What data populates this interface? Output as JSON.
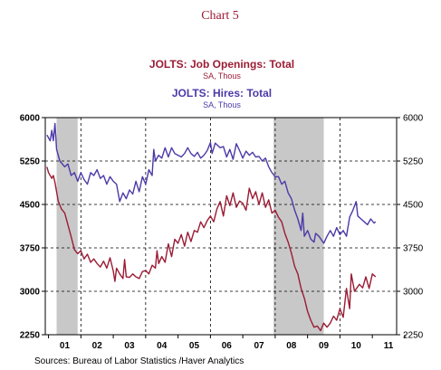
{
  "colors": {
    "openings": "#9b1c34",
    "hires": "#4b3aa8",
    "recession": "#c8c8c8",
    "grid": "#000000"
  },
  "chart_data": {
    "type": "line",
    "title": "Chart 5",
    "xlabel": "",
    "ylabel": "",
    "x_unit": "year",
    "xlim": [
      2000.9,
      2011.75
    ],
    "ylim": [
      2250,
      6000
    ],
    "y_ticks": [
      2250,
      3000,
      3750,
      4500,
      5250,
      6000
    ],
    "y_tick_labels": [
      "2250",
      "3000",
      "3750",
      "4500",
      "5250",
      "6000"
    ],
    "x_tick_labels": [
      {
        "year": 2001,
        "label": "01"
      },
      {
        "year": 2002,
        "label": "02"
      },
      {
        "year": 2003,
        "label": "03"
      },
      {
        "year": 2004,
        "label": "04"
      },
      {
        "year": 2005,
        "label": "05"
      },
      {
        "year": 2006,
        "label": "06"
      },
      {
        "year": 2007,
        "label": "07"
      },
      {
        "year": 2008,
        "label": "08"
      },
      {
        "year": 2009,
        "label": "09"
      },
      {
        "year": 2010,
        "label": "10"
      },
      {
        "year": 2011,
        "label": "11"
      }
    ],
    "grid": "dashed vertical at year starts, dashed horizontal at each y tick",
    "legend_placement": "top-center",
    "recessions": [
      {
        "start": 2001.25,
        "end": 2001.9
      },
      {
        "start": 2007.95,
        "end": 2009.5
      }
    ],
    "series": [
      {
        "name": "JOLTS: Job Openings: Total",
        "units": "SA, Thous",
        "color_key": "openings",
        "points": [
          [
            2000.95,
            5150
          ],
          [
            2001.0,
            5050
          ],
          [
            2001.1,
            4950
          ],
          [
            2001.15,
            5000
          ],
          [
            2001.2,
            4880
          ],
          [
            2001.3,
            4560
          ],
          [
            2001.4,
            4420
          ],
          [
            2001.5,
            4350
          ],
          [
            2001.6,
            4150
          ],
          [
            2001.7,
            3940
          ],
          [
            2001.8,
            3720
          ],
          [
            2001.9,
            3650
          ],
          [
            2002.0,
            3700
          ],
          [
            2002.1,
            3560
          ],
          [
            2002.2,
            3640
          ],
          [
            2002.3,
            3500
          ],
          [
            2002.4,
            3560
          ],
          [
            2002.5,
            3480
          ],
          [
            2002.6,
            3420
          ],
          [
            2002.7,
            3520
          ],
          [
            2002.8,
            3400
          ],
          [
            2002.9,
            3580
          ],
          [
            2003.0,
            3350
          ],
          [
            2003.05,
            3170
          ],
          [
            2003.1,
            3400
          ],
          [
            2003.2,
            3300
          ],
          [
            2003.3,
            3220
          ],
          [
            2003.35,
            3550
          ],
          [
            2003.4,
            3250
          ],
          [
            2003.5,
            3240
          ],
          [
            2003.6,
            3300
          ],
          [
            2003.7,
            3250
          ],
          [
            2003.8,
            3220
          ],
          [
            2003.9,
            3340
          ],
          [
            2004.0,
            3360
          ],
          [
            2004.1,
            3300
          ],
          [
            2004.2,
            3450
          ],
          [
            2004.3,
            3400
          ],
          [
            2004.35,
            3700
          ],
          [
            2004.4,
            3480
          ],
          [
            2004.5,
            3600
          ],
          [
            2004.6,
            3500
          ],
          [
            2004.7,
            3820
          ],
          [
            2004.8,
            3600
          ],
          [
            2004.9,
            3900
          ],
          [
            2005.0,
            3830
          ],
          [
            2005.1,
            3980
          ],
          [
            2005.2,
            3780
          ],
          [
            2005.3,
            4020
          ],
          [
            2005.4,
            3860
          ],
          [
            2005.5,
            4050
          ],
          [
            2005.6,
            4020
          ],
          [
            2005.7,
            4200
          ],
          [
            2005.8,
            4100
          ],
          [
            2005.9,
            4220
          ],
          [
            2006.0,
            4300
          ],
          [
            2006.1,
            4200
          ],
          [
            2006.2,
            4420
          ],
          [
            2006.3,
            4550
          ],
          [
            2006.4,
            4300
          ],
          [
            2006.5,
            4650
          ],
          [
            2006.6,
            4480
          ],
          [
            2006.7,
            4700
          ],
          [
            2006.8,
            4450
          ],
          [
            2006.9,
            4560
          ],
          [
            2007.0,
            4520
          ],
          [
            2007.1,
            4400
          ],
          [
            2007.2,
            4780
          ],
          [
            2007.3,
            4600
          ],
          [
            2007.4,
            4720
          ],
          [
            2007.5,
            4500
          ],
          [
            2007.6,
            4700
          ],
          [
            2007.7,
            4450
          ],
          [
            2007.8,
            4580
          ],
          [
            2007.9,
            4350
          ],
          [
            2008.0,
            4400
          ],
          [
            2008.1,
            4280
          ],
          [
            2008.2,
            4200
          ],
          [
            2008.3,
            4000
          ],
          [
            2008.4,
            3850
          ],
          [
            2008.5,
            3660
          ],
          [
            2008.6,
            3430
          ],
          [
            2008.7,
            3300
          ],
          [
            2008.8,
            3050
          ],
          [
            2008.9,
            2880
          ],
          [
            2009.0,
            2650
          ],
          [
            2009.1,
            2500
          ],
          [
            2009.2,
            2380
          ],
          [
            2009.3,
            2400
          ],
          [
            2009.4,
            2320
          ],
          [
            2009.5,
            2450
          ],
          [
            2009.6,
            2380
          ],
          [
            2009.7,
            2450
          ],
          [
            2009.8,
            2570
          ],
          [
            2009.9,
            2500
          ],
          [
            2010.0,
            2700
          ],
          [
            2010.1,
            2550
          ],
          [
            2010.2,
            3050
          ],
          [
            2010.3,
            2700
          ],
          [
            2010.35,
            3300
          ],
          [
            2010.45,
            3000
          ],
          [
            2010.6,
            3120
          ],
          [
            2010.7,
            3060
          ],
          [
            2010.8,
            3250
          ],
          [
            2010.9,
            3050
          ],
          [
            2011.0,
            3300
          ],
          [
            2011.1,
            3250
          ]
        ]
      },
      {
        "name": "JOLTS: Hires: Total",
        "units": "SA, Thous",
        "color_key": "hires",
        "points": [
          [
            2000.95,
            5700
          ],
          [
            2001.0,
            5650
          ],
          [
            2001.05,
            5600
          ],
          [
            2001.1,
            5780
          ],
          [
            2001.15,
            5600
          ],
          [
            2001.2,
            5900
          ],
          [
            2001.25,
            5450
          ],
          [
            2001.35,
            5250
          ],
          [
            2001.5,
            5150
          ],
          [
            2001.6,
            5200
          ],
          [
            2001.7,
            5000
          ],
          [
            2001.8,
            5050
          ],
          [
            2001.9,
            4900
          ],
          [
            2002.0,
            5050
          ],
          [
            2002.1,
            4930
          ],
          [
            2002.2,
            4850
          ],
          [
            2002.3,
            5050
          ],
          [
            2002.4,
            5000
          ],
          [
            2002.5,
            5100
          ],
          [
            2002.6,
            4950
          ],
          [
            2002.7,
            5000
          ],
          [
            2002.8,
            4850
          ],
          [
            2002.9,
            4980
          ],
          [
            2003.0,
            4900
          ],
          [
            2003.1,
            4850
          ],
          [
            2003.2,
            4550
          ],
          [
            2003.3,
            4700
          ],
          [
            2003.4,
            4600
          ],
          [
            2003.5,
            4750
          ],
          [
            2003.6,
            4680
          ],
          [
            2003.7,
            4900
          ],
          [
            2003.8,
            4720
          ],
          [
            2003.9,
            4980
          ],
          [
            2004.0,
            4850
          ],
          [
            2004.1,
            5100
          ],
          [
            2004.2,
            5000
          ],
          [
            2004.25,
            5450
          ],
          [
            2004.3,
            5250
          ],
          [
            2004.4,
            5350
          ],
          [
            2004.5,
            5300
          ],
          [
            2004.6,
            5480
          ],
          [
            2004.7,
            5320
          ],
          [
            2004.8,
            5480
          ],
          [
            2004.9,
            5380
          ],
          [
            2005.0,
            5350
          ],
          [
            2005.1,
            5320
          ],
          [
            2005.2,
            5380
          ],
          [
            2005.3,
            5480
          ],
          [
            2005.4,
            5380
          ],
          [
            2005.5,
            5330
          ],
          [
            2005.6,
            5400
          ],
          [
            2005.7,
            5300
          ],
          [
            2005.8,
            5350
          ],
          [
            2005.9,
            5430
          ],
          [
            2006.0,
            5570
          ],
          [
            2006.05,
            5380
          ],
          [
            2006.15,
            5560
          ],
          [
            2006.3,
            5480
          ],
          [
            2006.4,
            5500
          ],
          [
            2006.5,
            5320
          ],
          [
            2006.6,
            5450
          ],
          [
            2006.7,
            5280
          ],
          [
            2006.8,
            5550
          ],
          [
            2006.9,
            5430
          ],
          [
            2007.0,
            5300
          ],
          [
            2007.1,
            5420
          ],
          [
            2007.2,
            5350
          ],
          [
            2007.3,
            5400
          ],
          [
            2007.4,
            5320
          ],
          [
            2007.5,
            5330
          ],
          [
            2007.6,
            5250
          ],
          [
            2007.7,
            5300
          ],
          [
            2007.8,
            5150
          ],
          [
            2007.9,
            5050
          ],
          [
            2008.0,
            4980
          ],
          [
            2008.1,
            4980
          ],
          [
            2008.2,
            4850
          ],
          [
            2008.3,
            4900
          ],
          [
            2008.4,
            4700
          ],
          [
            2008.5,
            4600
          ],
          [
            2008.6,
            4400
          ],
          [
            2008.7,
            4250
          ],
          [
            2008.8,
            4050
          ],
          [
            2008.85,
            4350
          ],
          [
            2008.9,
            3950
          ],
          [
            2009.0,
            4050
          ],
          [
            2009.1,
            3900
          ],
          [
            2009.2,
            3850
          ],
          [
            2009.25,
            4000
          ],
          [
            2009.35,
            3950
          ],
          [
            2009.5,
            3830
          ],
          [
            2009.6,
            3950
          ],
          [
            2009.7,
            4050
          ],
          [
            2009.8,
            3950
          ],
          [
            2009.9,
            4100
          ],
          [
            2010.0,
            3980
          ],
          [
            2010.1,
            4050
          ],
          [
            2010.2,
            3950
          ],
          [
            2010.3,
            4280
          ],
          [
            2010.4,
            4400
          ],
          [
            2010.5,
            4550
          ],
          [
            2010.55,
            4300
          ],
          [
            2010.65,
            4250
          ],
          [
            2010.75,
            4200
          ],
          [
            2010.85,
            4150
          ],
          [
            2010.95,
            4250
          ],
          [
            2011.05,
            4180
          ],
          [
            2011.1,
            4200
          ]
        ]
      }
    ],
    "source_note": "Sources:  Bureau of Labor Statistics /Haver Analytics"
  }
}
